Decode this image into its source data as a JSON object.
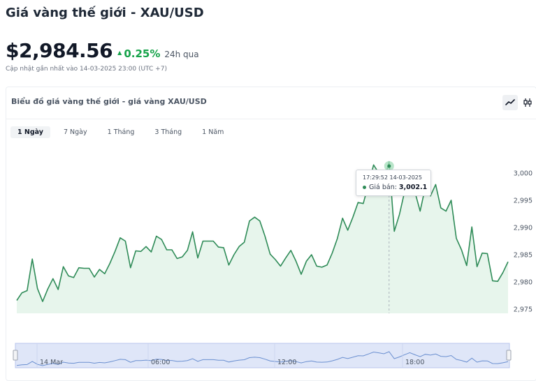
{
  "header": {
    "title": "Giá vàng thế giới - XAU/USD",
    "price": "$2,984.56",
    "change_pct": "0.25%",
    "period": "24h qua",
    "updated": "Cập nhật gần nhất vào 14-03-2025 23:00 (UTC +7)"
  },
  "card": {
    "title": "Biểu đồ giá vàng thế giới - giá vàng XAU/USD"
  },
  "chart_types": [
    {
      "icon": "line-chart-icon",
      "active": true
    },
    {
      "icon": "candlestick-icon",
      "active": false
    }
  ],
  "tabs": [
    "1 Ngày",
    "7 Ngày",
    "1 Tháng",
    "3 Tháng",
    "1 Năm"
  ],
  "active_tab": 0,
  "tooltip": {
    "time": "17:29:52 14-03-2025",
    "label": "Giá bán:",
    "value": "3,002.1"
  },
  "colors": {
    "line": "#2e8b57",
    "area": "#e7f5ec",
    "up": "#16a34a",
    "navigator": "#dfe6f8"
  },
  "chart_data": {
    "type": "area",
    "title": "",
    "xlabel": "",
    "ylabel": "",
    "y_ticks": [
      2975,
      2980,
      2985,
      2990,
      2995,
      3000
    ],
    "ylim": [
      2975,
      3001.5
    ],
    "grid": false,
    "series": [
      {
        "values": [
          2976.6,
          2978.0,
          2978.4,
          2984.2,
          2978.8,
          2976.4,
          2978.7,
          2980.6,
          2978.6,
          2982.8,
          2981.1,
          2980.8,
          2982.6,
          2982.5,
          2982.5,
          2980.9,
          2982.3,
          2981.5,
          2983.4,
          2985.6,
          2988.1,
          2987.5,
          2982.6,
          2985.7,
          2985.6,
          2986.5,
          2985.5,
          2988.4,
          2987.8,
          2985.9,
          2985.9,
          2984.3,
          2984.6,
          2985.8,
          2989.2,
          2984.4,
          2987.5,
          2987.5,
          2987.5,
          2986.4,
          2986.3,
          2983.1,
          2985.0,
          2986.5,
          2987.3,
          2991.2,
          2991.9,
          2991.2,
          2988.4,
          2985.1,
          2984.1,
          2982.9,
          2984.4,
          2985.8,
          2983.8,
          2981.4,
          2983.8,
          2985.0,
          2982.9,
          2982.7,
          2983.1,
          2985.3,
          2988.0,
          2991.7,
          2989.5,
          2991.9,
          2994.6,
          2994.4,
          2997.9,
          3001.5,
          3000.0,
          2998.3,
          3002.1,
          2989.3,
          2992.4,
          2996.6,
          3000.3,
          2996.5,
          2993.0,
          2997.4,
          2995.8,
          2997.9,
          2993.6,
          2993.0,
          2995.0,
          2988.0,
          2985.9,
          2983.0,
          2990.1,
          2982.8,
          2985.3,
          2985.2,
          2980.2,
          2980.1,
          2981.7,
          2983.7
        ]
      }
    ],
    "navigator_labels": [
      "14 Mar",
      "06:00",
      "12:00",
      "18:00"
    ]
  }
}
